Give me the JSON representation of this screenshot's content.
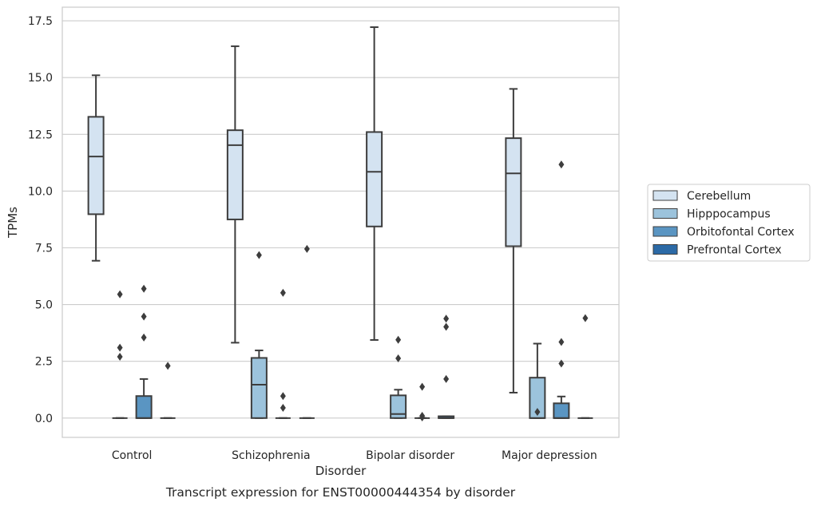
{
  "chart_data": {
    "type": "boxplot",
    "xlabel": "Disorder",
    "ylabel": "TPMs",
    "caption": "Transcript expression for ENST00000444354 by disorder",
    "ylim": [
      -0.85,
      18.1
    ],
    "yticks": [
      "0.0",
      "2.5",
      "5.0",
      "7.5",
      "10.0",
      "12.5",
      "15.0",
      "17.5"
    ],
    "grid": "horizontal",
    "legend_position": "right",
    "categories": [
      "Control",
      "Schizophrenia",
      "Bipolar disorder",
      "Major depression"
    ],
    "series": [
      {
        "name": "Cerebellum",
        "color": "#d4e3f1",
        "boxes": [
          {
            "whisker_low": 6.93,
            "q1": 8.98,
            "median": 11.52,
            "q3": 13.27,
            "whisker_high": 15.1,
            "outliers": []
          },
          {
            "whisker_low": 3.32,
            "q1": 8.75,
            "median": 12.02,
            "q3": 12.68,
            "whisker_high": 16.38,
            "outliers": []
          },
          {
            "whisker_low": 3.44,
            "q1": 8.44,
            "median": 10.85,
            "q3": 12.6,
            "whisker_high": 17.22,
            "outliers": []
          },
          {
            "whisker_low": 1.12,
            "q1": 7.57,
            "median": 10.78,
            "q3": 12.33,
            "whisker_high": 14.5,
            "outliers": []
          }
        ]
      },
      {
        "name": "Hipppocampus",
        "color": "#9cc3dc",
        "boxes": [
          {
            "whisker_low": 0.0,
            "q1": 0.0,
            "median": 0.0,
            "q3": 0.0,
            "whisker_high": 0.0,
            "outliers": [
              5.45,
              3.1,
              2.7
            ]
          },
          {
            "whisker_low": 0.0,
            "q1": 0.0,
            "median": 1.47,
            "q3": 2.65,
            "whisker_high": 2.98,
            "outliers": [
              7.18
            ]
          },
          {
            "whisker_low": 0.0,
            "q1": 0.0,
            "median": 0.18,
            "q3": 1.0,
            "whisker_high": 1.25,
            "outliers": [
              3.45,
              2.63
            ]
          },
          {
            "whisker_low": 0.0,
            "q1": 0.0,
            "median": 0.0,
            "q3": 1.78,
            "whisker_high": 3.28,
            "outliers": [
              0.27
            ]
          }
        ]
      },
      {
        "name": "Orbitofontal Cortex",
        "color": "#5a95c2",
        "boxes": [
          {
            "whisker_low": 0.0,
            "q1": 0.0,
            "median": 0.0,
            "q3": 0.97,
            "whisker_high": 1.72,
            "outliers": [
              5.7,
              4.47,
              3.55
            ]
          },
          {
            "whisker_low": 0.0,
            "q1": 0.0,
            "median": 0.0,
            "q3": 0.0,
            "whisker_high": 0.0,
            "outliers": [
              5.52,
              0.97,
              0.45
            ]
          },
          {
            "whisker_low": 0.0,
            "q1": 0.0,
            "median": 0.0,
            "q3": 0.0,
            "whisker_high": 0.0,
            "outliers": [
              1.38,
              0.1,
              0.03
            ]
          },
          {
            "whisker_low": 0.0,
            "q1": 0.0,
            "median": 0.0,
            "q3": 0.65,
            "whisker_high": 0.95,
            "outliers": [
              11.17,
              3.35,
              2.4
            ]
          }
        ]
      },
      {
        "name": "Prefrontal Cortex",
        "color": "#2c6aa6",
        "boxes": [
          {
            "whisker_low": 0.0,
            "q1": 0.0,
            "median": 0.0,
            "q3": 0.0,
            "whisker_high": 0.0,
            "outliers": [
              2.3
            ]
          },
          {
            "whisker_low": 0.0,
            "q1": 0.0,
            "median": 0.0,
            "q3": 0.0,
            "whisker_high": 0.0,
            "outliers": [
              7.45
            ]
          },
          {
            "whisker_low": 0.0,
            "q1": 0.0,
            "median": 0.0,
            "q3": 0.08,
            "whisker_high": 0.08,
            "outliers": [
              4.38,
              4.02,
              1.72
            ]
          },
          {
            "whisker_low": 0.0,
            "q1": 0.0,
            "median": 0.0,
            "q3": 0.0,
            "whisker_high": 0.0,
            "outliers": [
              4.4
            ]
          }
        ]
      }
    ]
  }
}
